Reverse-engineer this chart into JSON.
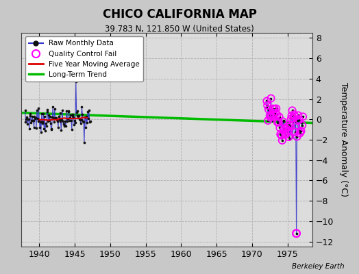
{
  "title": "CHICO CALIFORNIA MAP",
  "subtitle": "39.783 N, 121.850 W (United States)",
  "ylabel": "Temperature Anomaly (°C)",
  "attribution": "Berkeley Earth",
  "bg_color": "#c8c8c8",
  "plot_bg_color": "#dcdcdc",
  "ylim": [
    -12.5,
    8.5
  ],
  "xlim": [
    1937.5,
    1978.5
  ],
  "yticks": [
    -12,
    -10,
    -8,
    -6,
    -4,
    -2,
    0,
    2,
    4,
    6,
    8
  ],
  "xticks": [
    1940,
    1945,
    1950,
    1955,
    1960,
    1965,
    1970,
    1975
  ],
  "grid_color": "#aaaaaa",
  "line_color": "#3333cc",
  "dot_color": "#111111",
  "qc_color": "#ff00ff",
  "trend_color": "#00bb00",
  "five_yr_color": "#dd0000"
}
